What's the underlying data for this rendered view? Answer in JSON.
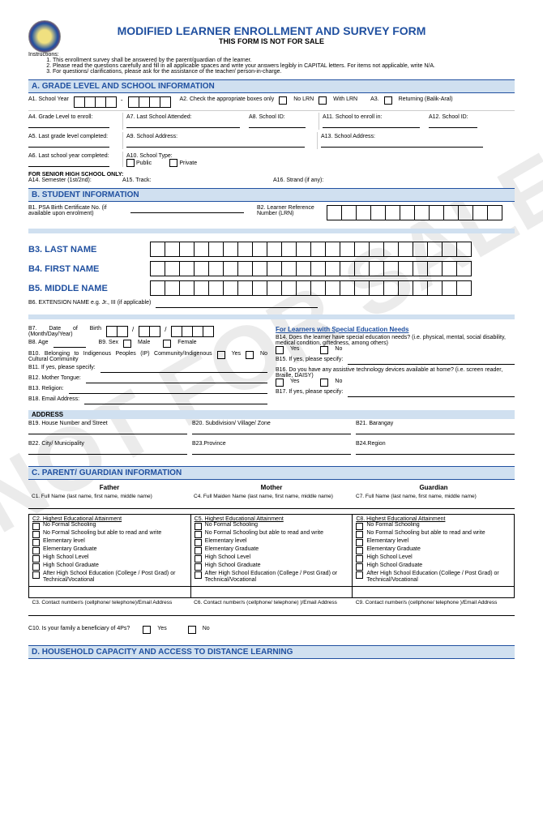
{
  "watermark": "NOT FOR SALE",
  "header": {
    "title": "MODIFIED LEARNER ENROLLMENT AND SURVEY FORM",
    "subtitle": "THIS FORM IS NOT FOR SALE"
  },
  "instructions": {
    "label": "Instructions:",
    "items": [
      "This enrollment survey shall be answered by the parent/guardian of the learner.",
      "Please read the questions carefully and fill in all applicable spaces and write your answers legibly in CAPITAL letters. For items not applicable, write N/A.",
      "For questions/ clarifications, please ask for the assistance of the teacher/ person-in-charge."
    ]
  },
  "sectionA": {
    "title": "A.  GRADE LEVEL AND SCHOOL INFORMATION",
    "a1": "A1. School Year",
    "dash": "-",
    "a2": "A2. Check the appropriate boxes only",
    "noLrn": "No LRN",
    "withLrn": "With LRN",
    "a3": "A3.",
    "returning": "Returning (Balik-Aral)",
    "a4": "A4. Grade Level to enroll:",
    "a5": "A5. Last grade level completed:",
    "a6": "A6. Last school year completed:",
    "a7": "A7. Last School Attended:",
    "a8": "A8. School ID:",
    "a9": "A9. School Address:",
    "a10": "A10. School Type:",
    "public": "Public",
    "private": "Private",
    "a11": "A11. School to enroll in:",
    "a12": "A12. School ID:",
    "a13": "A13. School Address:",
    "shs": "FOR SENIOR HIGH SCHOOL ONLY:",
    "a14": "A14. Semester (1st/2nd):",
    "a15": "A15. Track:",
    "a16": "A16. Strand (if any):"
  },
  "sectionB": {
    "title": "B. STUDENT INFORMATION",
    "b1": "B1. PSA Birth Certificate No. (if available upon enrolment)",
    "b2": "B2. Learner Reference Number (LRN)",
    "b3": "B3. LAST NAME",
    "b4": "B4. FIRST NAME",
    "b5": "B5. MIDDLE NAME",
    "b6": "B6. EXTENSION NAME e.g. Jr., III (if applicable)",
    "b7": "B7. Date of Birth (Month/Day/Year)",
    "slash": "/",
    "b8": "B8. Age",
    "b9": "B9. Sex",
    "male": "Male",
    "female": "Female",
    "b10": "B10. Belonging to Indigenous Peoples (IP) Community/Indigenous Cultural Community",
    "yes": "Yes",
    "no": "No",
    "b11": "B11. If yes, please specify:",
    "b12": "B12. Mother Tongue:",
    "b13": "B13. Religion:",
    "b18": "B18. Email Address:",
    "specialNeeds": "For Learners with Special Education Needs",
    "b14": "B14. Does the learner have special education needs? (i.e. physical, mental, social disability, medical condition, giftedness, among others)",
    "b15": "B15. If yes, please specify:",
    "b16": "B16. Do you have any assistive technology devices available at home? (i.e. screen reader, Braille, DAISY)",
    "b17": "B17. If yes, please specify:",
    "address": "ADDRESS",
    "b19": "B19. House Number and Street",
    "b20": "B20. Subdivision/ Village/ Zone",
    "b21": "B21. Barangay",
    "b22": "B22. City/ Municipality",
    "b23": "B23.Province",
    "b24": "B24.Region"
  },
  "sectionC": {
    "title": "C. PARENT/ GUARDIAN INFORMATION",
    "father": "Father",
    "mother": "Mother",
    "guardian": "Guardian",
    "c1": "C1. Full Name (last name, first name, middle name)",
    "c4": "C4. Full Maiden Name (last name, first name, middle name)",
    "c7": "C7. Full Name (last name, first name, middle name)",
    "c2": "C2. Highest Educational Attainment",
    "c5": "C5. Highest Educational Attainment",
    "c8": "C8. Highest Educational Attainment",
    "edu": [
      "No Formal Schooling",
      "No Formal Schooling but able to read and write",
      "Elementary level",
      "Elementary Graduate",
      "High School Level",
      "High School Graduate",
      "After High School Education (College / Post Grad) or Technical/Vocational"
    ],
    "c3": "C3. Contact number/s (cellphone/ telephone)/Email Address",
    "c6": "C6. Contact number/s (cellphone/ telephone) )/Email Address",
    "c9": "C9. Contact number/s (cellphone/ telephone )/Email Address",
    "c10": "C10. Is your family a beneficiary of 4Ps?",
    "yes": "Yes",
    "no": "No"
  },
  "sectionD": {
    "title": "D. HOUSEHOLD CAPACITY AND ACCESS TO DISTANCE LEARNING"
  },
  "layout": {
    "name_boxes": 22,
    "lrn_boxes": 12,
    "psa_underline_width": 140
  },
  "colors": {
    "accent": "#2050a0",
    "band": "#d0e0f0"
  }
}
